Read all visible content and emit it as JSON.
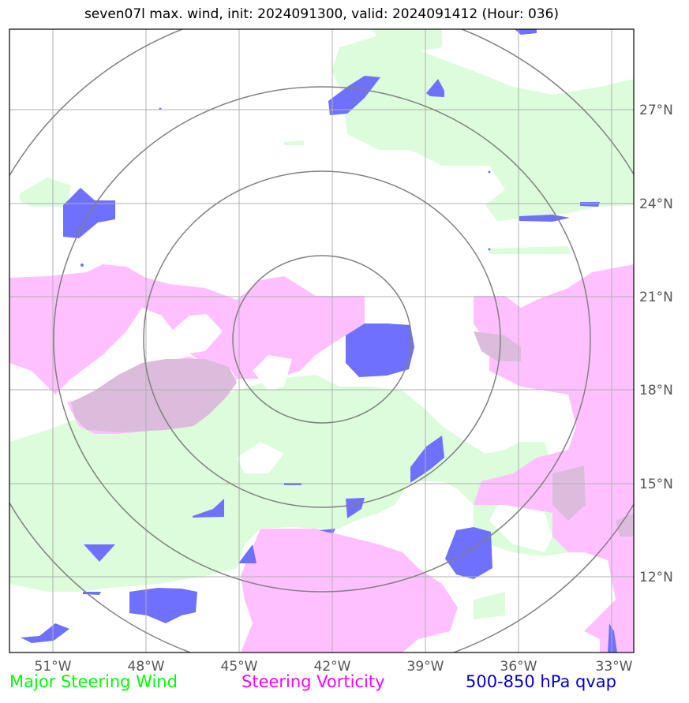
{
  "title": "seven07l max. wind, init: 2024091300, valid: 2024091412 (Hour: 036)",
  "lon_ticks": [
    "51°W",
    "48°W",
    "45°W",
    "42°W",
    "39°W",
    "36°W",
    "33°W"
  ],
  "lat_ticks": [
    "27°N",
    "24°N",
    "21°N",
    "18°N",
    "15°N",
    "12°N"
  ],
  "legend": {
    "wind": "Major Steering Wind",
    "vorticity": "Steering Vorticity",
    "qvap": "500-850 hPa qvap"
  },
  "colors": {
    "wind": "#00ff00",
    "wind_fill": "#dcfcdc",
    "vorticity": "#ff00ff",
    "vorticity_fill": "#ffc0ff",
    "overlap_fill": "#dcbcdc",
    "qvap": "#0000cc",
    "qvap_fill": "#7070ff",
    "range_rings": "#808080",
    "grid": "#b0b0b0"
  }
}
